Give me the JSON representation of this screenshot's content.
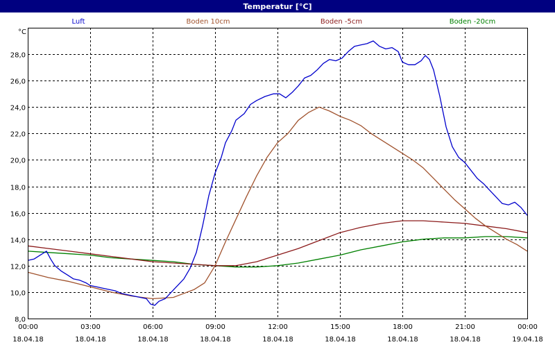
{
  "window": {
    "title": "Temperatur [°C]"
  },
  "chart_data": {
    "type": "line",
    "title": "Temperatur [°C]",
    "ylabel": "°C",
    "ylim": [
      8,
      30
    ],
    "xlim": [
      0,
      24
    ],
    "grid": true,
    "legend_position": "top",
    "yticks": [
      "8,0",
      "10,0",
      "12,0",
      "14,0",
      "16,0",
      "18,0",
      "20,0",
      "22,0",
      "24,0",
      "26,0",
      "28,0"
    ],
    "xticks": [
      {
        "time": "00:00",
        "date": "18.04.18"
      },
      {
        "time": "03:00",
        "date": "18.04.18"
      },
      {
        "time": "06:00",
        "date": "18.04.18"
      },
      {
        "time": "09:00",
        "date": "18.04.18"
      },
      {
        "time": "12:00",
        "date": "18.04.18"
      },
      {
        "time": "15:00",
        "date": "18.04.18"
      },
      {
        "time": "18:00",
        "date": "18.04.18"
      },
      {
        "time": "21:00",
        "date": "18.04.18"
      },
      {
        "time": "00:00",
        "date": "19.04.18"
      }
    ],
    "series": [
      {
        "name": "Luft",
        "color": "#0000cc",
        "points": [
          [
            0,
            12.4
          ],
          [
            0.3,
            12.5
          ],
          [
            0.6,
            12.8
          ],
          [
            0.9,
            13.1
          ],
          [
            1.1,
            12.5
          ],
          [
            1.3,
            12.0
          ],
          [
            1.6,
            11.6
          ],
          [
            1.9,
            11.3
          ],
          [
            2.2,
            11.0
          ],
          [
            2.5,
            10.9
          ],
          [
            2.8,
            10.7
          ],
          [
            3.0,
            10.5
          ],
          [
            3.3,
            10.4
          ],
          [
            3.6,
            10.3
          ],
          [
            3.9,
            10.2
          ],
          [
            4.2,
            10.1
          ],
          [
            4.5,
            9.9
          ],
          [
            4.8,
            9.8
          ],
          [
            5.1,
            9.7
          ],
          [
            5.4,
            9.6
          ],
          [
            5.7,
            9.5
          ],
          [
            5.9,
            9.1
          ],
          [
            6.1,
            9.0
          ],
          [
            6.3,
            9.3
          ],
          [
            6.6,
            9.5
          ],
          [
            6.9,
            10.0
          ],
          [
            7.2,
            10.5
          ],
          [
            7.5,
            11.0
          ],
          [
            7.8,
            11.8
          ],
          [
            8.1,
            13.0
          ],
          [
            8.4,
            15.0
          ],
          [
            8.7,
            17.3
          ],
          [
            9.0,
            19.0
          ],
          [
            9.3,
            20.2
          ],
          [
            9.5,
            21.3
          ],
          [
            9.8,
            22.2
          ],
          [
            10.0,
            23.0
          ],
          [
            10.4,
            23.5
          ],
          [
            10.7,
            24.2
          ],
          [
            11.0,
            24.5
          ],
          [
            11.4,
            24.8
          ],
          [
            11.8,
            25.0
          ],
          [
            12.1,
            25.0
          ],
          [
            12.4,
            24.7
          ],
          [
            12.7,
            25.1
          ],
          [
            13.0,
            25.6
          ],
          [
            13.3,
            26.2
          ],
          [
            13.6,
            26.4
          ],
          [
            13.9,
            26.8
          ],
          [
            14.2,
            27.3
          ],
          [
            14.5,
            27.6
          ],
          [
            14.8,
            27.5
          ],
          [
            15.1,
            27.7
          ],
          [
            15.4,
            28.2
          ],
          [
            15.7,
            28.6
          ],
          [
            16.0,
            28.7
          ],
          [
            16.3,
            28.8
          ],
          [
            16.6,
            29.0
          ],
          [
            16.9,
            28.6
          ],
          [
            17.2,
            28.4
          ],
          [
            17.5,
            28.5
          ],
          [
            17.8,
            28.2
          ],
          [
            18.0,
            27.4
          ],
          [
            18.3,
            27.2
          ],
          [
            18.6,
            27.2
          ],
          [
            18.9,
            27.5
          ],
          [
            19.1,
            27.9
          ],
          [
            19.3,
            27.6
          ],
          [
            19.5,
            26.8
          ],
          [
            19.8,
            24.8
          ],
          [
            20.1,
            22.5
          ],
          [
            20.4,
            21.0
          ],
          [
            20.7,
            20.2
          ],
          [
            21.0,
            19.8
          ],
          [
            21.3,
            19.2
          ],
          [
            21.6,
            18.6
          ],
          [
            21.9,
            18.2
          ],
          [
            22.2,
            17.7
          ],
          [
            22.5,
            17.2
          ],
          [
            22.8,
            16.7
          ],
          [
            23.1,
            16.6
          ],
          [
            23.4,
            16.8
          ],
          [
            23.7,
            16.4
          ],
          [
            24.0,
            15.8
          ]
        ]
      },
      {
        "name": "Boden 10cm",
        "color": "#a0522d",
        "points": [
          [
            0,
            11.5
          ],
          [
            1.0,
            11.1
          ],
          [
            2.0,
            10.8
          ],
          [
            3.0,
            10.4
          ],
          [
            4.0,
            10.0
          ],
          [
            5.0,
            9.7
          ],
          [
            6.0,
            9.5
          ],
          [
            7.0,
            9.6
          ],
          [
            7.5,
            9.9
          ],
          [
            8.0,
            10.2
          ],
          [
            8.5,
            10.7
          ],
          [
            9.0,
            12.0
          ],
          [
            9.5,
            13.8
          ],
          [
            10.0,
            15.5
          ],
          [
            10.5,
            17.2
          ],
          [
            11.0,
            18.8
          ],
          [
            11.5,
            20.2
          ],
          [
            12.0,
            21.3
          ],
          [
            12.5,
            22.0
          ],
          [
            13.0,
            23.0
          ],
          [
            13.5,
            23.6
          ],
          [
            14.0,
            24.0
          ],
          [
            14.5,
            23.7
          ],
          [
            15.0,
            23.3
          ],
          [
            15.5,
            23.0
          ],
          [
            16.0,
            22.6
          ],
          [
            16.5,
            22.0
          ],
          [
            17.0,
            21.5
          ],
          [
            17.5,
            21.0
          ],
          [
            18.0,
            20.5
          ],
          [
            18.5,
            20.0
          ],
          [
            19.0,
            19.4
          ],
          [
            19.5,
            18.6
          ],
          [
            20.0,
            17.8
          ],
          [
            20.5,
            17.0
          ],
          [
            21.0,
            16.3
          ],
          [
            21.5,
            15.6
          ],
          [
            22.0,
            15.0
          ],
          [
            22.5,
            14.5
          ],
          [
            23.0,
            14.0
          ],
          [
            23.5,
            13.6
          ],
          [
            24.0,
            13.1
          ]
        ]
      },
      {
        "name": "Boden -5cm",
        "color": "#8b1a1a",
        "points": [
          [
            0,
            13.5
          ],
          [
            1.0,
            13.3
          ],
          [
            2.0,
            13.1
          ],
          [
            3.0,
            12.9
          ],
          [
            4.0,
            12.7
          ],
          [
            5.0,
            12.5
          ],
          [
            6.0,
            12.3
          ],
          [
            7.0,
            12.2
          ],
          [
            8.0,
            12.1
          ],
          [
            9.0,
            12.0
          ],
          [
            10.0,
            12.0
          ],
          [
            11.0,
            12.3
          ],
          [
            12.0,
            12.8
          ],
          [
            13.0,
            13.3
          ],
          [
            14.0,
            13.9
          ],
          [
            15.0,
            14.5
          ],
          [
            16.0,
            14.9
          ],
          [
            17.0,
            15.2
          ],
          [
            18.0,
            15.4
          ],
          [
            19.0,
            15.4
          ],
          [
            20.0,
            15.3
          ],
          [
            21.0,
            15.2
          ],
          [
            22.0,
            15.0
          ],
          [
            23.0,
            14.8
          ],
          [
            24.0,
            14.5
          ]
        ]
      },
      {
        "name": "Boden -20cm",
        "color": "#008000",
        "points": [
          [
            0,
            13.1
          ],
          [
            1.0,
            13.0
          ],
          [
            2.0,
            12.9
          ],
          [
            3.0,
            12.8
          ],
          [
            4.0,
            12.6
          ],
          [
            5.0,
            12.5
          ],
          [
            6.0,
            12.4
          ],
          [
            7.0,
            12.3
          ],
          [
            8.0,
            12.1
          ],
          [
            9.0,
            12.0
          ],
          [
            10.0,
            11.9
          ],
          [
            11.0,
            11.9
          ],
          [
            12.0,
            12.0
          ],
          [
            13.0,
            12.2
          ],
          [
            14.0,
            12.5
          ],
          [
            15.0,
            12.8
          ],
          [
            16.0,
            13.2
          ],
          [
            17.0,
            13.5
          ],
          [
            18.0,
            13.8
          ],
          [
            19.0,
            14.0
          ],
          [
            20.0,
            14.1
          ],
          [
            21.0,
            14.1
          ],
          [
            22.0,
            14.2
          ],
          [
            23.0,
            14.2
          ],
          [
            24.0,
            14.1
          ]
        ]
      }
    ]
  }
}
